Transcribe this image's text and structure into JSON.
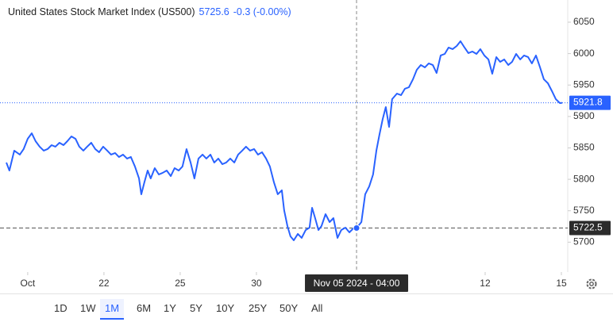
{
  "chart_data": {
    "type": "line",
    "title": "United States Stock Market Index (US500)",
    "price": 5725.6,
    "change": "-0.3 (-0.00%)",
    "color": "#2962ff",
    "x": [
      -0.84,
      -0.72,
      -0.53,
      -0.31,
      -0.16,
      0,
      0.16,
      0.31,
      0.47,
      0.63,
      0.78,
      0.94,
      1.09,
      1.25,
      1.41,
      1.56,
      1.72,
      1.88,
      2.03,
      2.19,
      2.34,
      2.5,
      2.66,
      2.81,
      2.97,
      3.13,
      3.28,
      3.44,
      3.59,
      3.75,
      3.91,
      4.06,
      4.22,
      4.38,
      4.47,
      4.59,
      4.72,
      4.84,
      5,
      5.16,
      5.31,
      5.47,
      5.63,
      5.78,
      5.94,
      6.09,
      6.25,
      6.41,
      6.56,
      6.72,
      6.88,
      7.03,
      7.19,
      7.34,
      7.5,
      7.66,
      7.81,
      7.97,
      8.13,
      8.28,
      8.44,
      8.59,
      8.75,
      8.91,
      9.06,
      9.22,
      9.38,
      9.53,
      9.69,
      9.84,
      10,
      10.09,
      10.22,
      10.34,
      10.47,
      10.63,
      10.78,
      10.94,
      11.09,
      11.19,
      11.31,
      11.44,
      11.56,
      11.72,
      11.88,
      12.03,
      12.19,
      12.34,
      12.5,
      12.66,
      12.81,
      12.94,
      13.13,
      13.28,
      13.44,
      13.59,
      13.72,
      13.84,
      13.97,
      14.09,
      14.22,
      14.34,
      14.53,
      14.69,
      14.84,
      15,
      15.16,
      15.31,
      15.47,
      15.63,
      15.78,
      15.94,
      16.09,
      16.25,
      16.41,
      16.56,
      16.72,
      16.88,
      17.03,
      17.19,
      17.34,
      17.5,
      17.66,
      17.81,
      17.97,
      18.13,
      18.28,
      18.44,
      18.59,
      18.75,
      18.91,
      19.06,
      19.22,
      19.38,
      19.53,
      19.69,
      19.84,
      20,
      20.16,
      20.31,
      20.47,
      20.63,
      20.78,
      20.94,
      21.03
    ],
    "values": [
      5826.7,
      5814,
      5845.6,
      5839.3,
      5848.1,
      5864.5,
      5873.3,
      5860.7,
      5851.9,
      5845.6,
      5848.1,
      5854.4,
      5851.9,
      5858.2,
      5854.4,
      5860.7,
      5868.3,
      5864.5,
      5851.9,
      5845.6,
      5851.9,
      5858.2,
      5848.1,
      5843.1,
      5851.9,
      5845.6,
      5839.3,
      5841.8,
      5835.5,
      5839.3,
      5833,
      5835.5,
      5820.4,
      5801.4,
      5776.2,
      5795.1,
      5814,
      5801.4,
      5817.8,
      5807.7,
      5810.3,
      5814,
      5805.2,
      5817.8,
      5814,
      5820.4,
      5848.1,
      5826.7,
      5801.4,
      5833,
      5839.3,
      5833,
      5839.3,
      5826.7,
      5833,
      5824.1,
      5826.7,
      5833,
      5826.7,
      5839.3,
      5845.6,
      5851.9,
      5845.6,
      5848.1,
      5839.3,
      5843.1,
      5833,
      5820.4,
      5795.1,
      5776.2,
      5782.5,
      5751,
      5725.7,
      5709.3,
      5703,
      5713.1,
      5706.8,
      5719.4,
      5723.2,
      5754.7,
      5738.3,
      5719.4,
      5725.7,
      5744.6,
      5732,
      5738.3,
      5706.8,
      5719.4,
      5723.2,
      5715.6,
      5721.9,
      5722.5,
      5732,
      5776.2,
      5788.8,
      5807.7,
      5845.6,
      5870.8,
      5896.1,
      5915,
      5883.4,
      5927.6,
      5936.4,
      5933.9,
      5944,
      5946.5,
      5959.2,
      5974.3,
      5981.9,
      5978.1,
      5984.4,
      5981.9,
      5969.2,
      5997,
      5999.5,
      6009.6,
      6007.1,
      6012.1,
      6019.7,
      6009.6,
      6000.8,
      6003.3,
      5999.5,
      6007.1,
      5997,
      5990.7,
      5968,
      5994.5,
      5986.9,
      5990.7,
      5981.9,
      5986.9,
      5999.5,
      5990.7,
      5997,
      5994.5,
      5984.4,
      5997,
      5978.1,
      5959.2,
      5952.8,
      5940.2,
      5927.6,
      5921.3,
      5921.8
    ],
    "xlim": [
      -1.09,
      21.25
    ],
    "xticks": [
      {
        "value": 0,
        "label": "Oct"
      },
      {
        "value": 3,
        "label": "22"
      },
      {
        "value": 6,
        "label": "25"
      },
      {
        "value": 9,
        "label": "30"
      },
      {
        "value": 18,
        "label": "12"
      },
      {
        "value": 21,
        "label": "15"
      }
    ],
    "ylim": [
      5652.5,
      6085.3
    ],
    "yticks": [
      5700,
      5750,
      5800,
      5850,
      5900,
      5950,
      6000,
      6050
    ],
    "last_value": 5921.8,
    "crosshair": {
      "x": 12.94,
      "x_label": "Nov 05 2024 - 04:00",
      "y": 5722.5
    },
    "range_buttons": [
      "1D",
      "1W",
      "1M",
      "6M",
      "1Y",
      "5Y",
      "10Y",
      "25Y",
      "50Y",
      "All"
    ],
    "selected_range": 2
  }
}
